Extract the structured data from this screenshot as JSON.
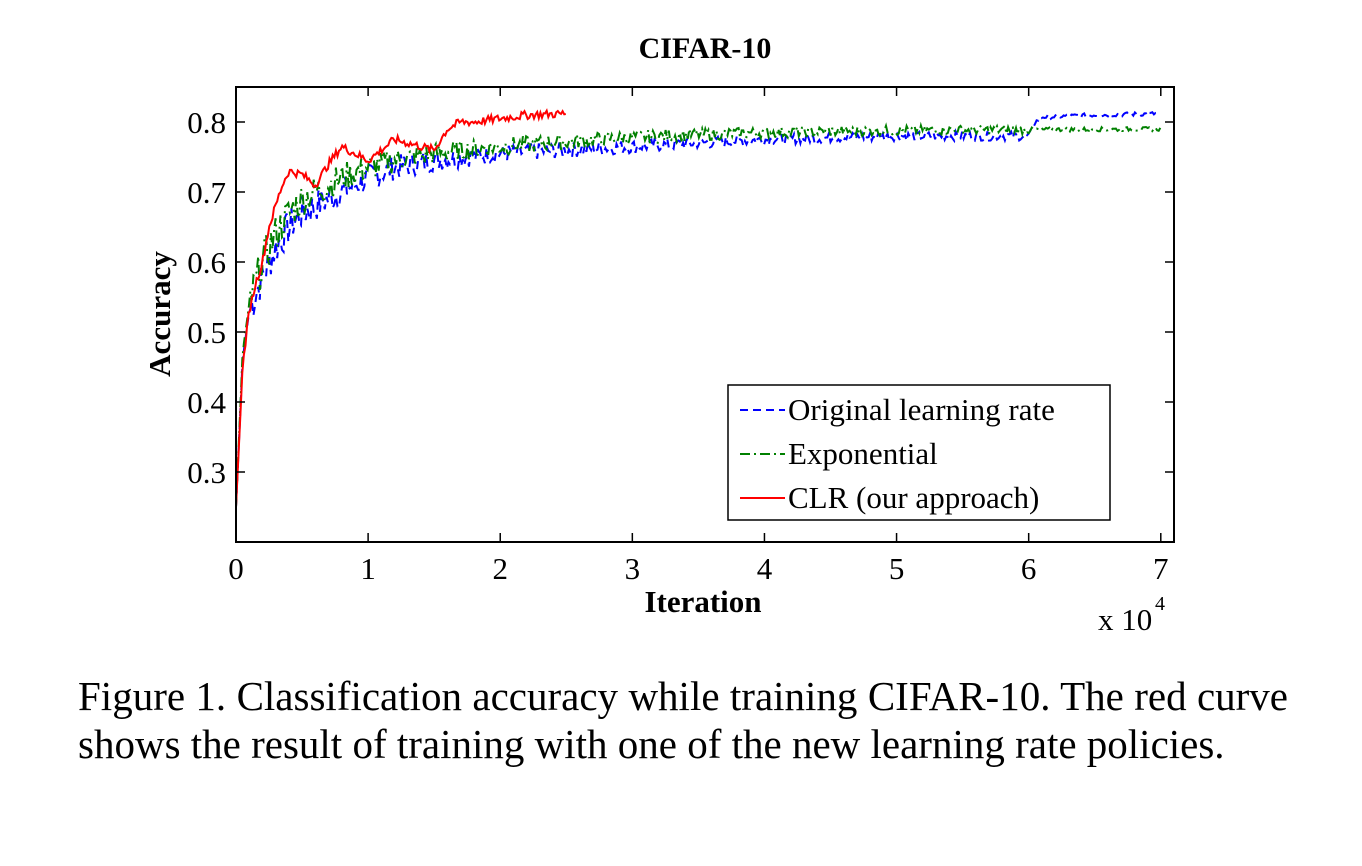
{
  "chart_data": {
    "type": "line",
    "title": "CIFAR-10",
    "xlabel": "Iteration",
    "ylabel": "Accuracy",
    "x_multiplier_label": "x 10",
    "x_multiplier_exponent": "4",
    "xlim": [
      0,
      7.1
    ],
    "ylim": [
      0.2,
      0.85
    ],
    "xticks": [
      0,
      1,
      2,
      3,
      4,
      5,
      6,
      7
    ],
    "yticks": [
      0.3,
      0.4,
      0.5,
      0.6,
      0.7,
      0.8
    ],
    "xtick_labels": [
      "0",
      "1",
      "2",
      "3",
      "4",
      "5",
      "6",
      "7"
    ],
    "ytick_labels": [
      "0.3",
      "0.4",
      "0.5",
      "0.6",
      "0.7",
      "0.8"
    ],
    "legend_position": "lower-right",
    "series": [
      {
        "name": "Original learning rate",
        "color": "#0000ff",
        "style": "dashed",
        "x": [
          0,
          0.05,
          0.1,
          0.2,
          0.3,
          0.4,
          0.5,
          0.6,
          0.8,
          1.0,
          1.2,
          1.5,
          2.0,
          2.5,
          3.0,
          3.5,
          4.0,
          5.0,
          6.0,
          6.05,
          6.1,
          6.5,
          7.0
        ],
        "y": [
          0.25,
          0.46,
          0.53,
          0.58,
          0.62,
          0.65,
          0.67,
          0.68,
          0.7,
          0.72,
          0.735,
          0.745,
          0.755,
          0.76,
          0.765,
          0.77,
          0.775,
          0.78,
          0.78,
          0.8,
          0.807,
          0.81,
          0.812
        ]
      },
      {
        "name": "Exponential",
        "color": "#008000",
        "style": "dashdot",
        "x": [
          0,
          0.05,
          0.1,
          0.2,
          0.3,
          0.4,
          0.5,
          0.6,
          0.8,
          1.0,
          1.2,
          1.5,
          2.0,
          2.5,
          3.0,
          3.5,
          4.0,
          5.0,
          6.0,
          7.0
        ],
        "y": [
          0.25,
          0.47,
          0.54,
          0.6,
          0.64,
          0.67,
          0.69,
          0.7,
          0.72,
          0.735,
          0.745,
          0.755,
          0.765,
          0.772,
          0.778,
          0.782,
          0.785,
          0.788,
          0.789,
          0.79
        ]
      },
      {
        "name": "CLR (our approach)",
        "color": "#ff0000",
        "style": "solid",
        "x": [
          0,
          0.05,
          0.1,
          0.15,
          0.2,
          0.25,
          0.3,
          0.35,
          0.4,
          0.5,
          0.6,
          0.7,
          0.8,
          0.9,
          1.0,
          1.1,
          1.2,
          1.3,
          1.4,
          1.5,
          1.6,
          1.7,
          1.8,
          2.0,
          2.2,
          2.5
        ],
        "y": [
          0.25,
          0.45,
          0.53,
          0.57,
          0.6,
          0.65,
          0.68,
          0.71,
          0.73,
          0.725,
          0.71,
          0.74,
          0.765,
          0.755,
          0.745,
          0.76,
          0.775,
          0.77,
          0.765,
          0.76,
          0.79,
          0.8,
          0.8,
          0.805,
          0.81,
          0.812
        ]
      }
    ]
  },
  "caption": {
    "text": "Figure 1. Classification accuracy while training CIFAR-10. The red curve shows the result of training with one of the new learning rate policies."
  }
}
